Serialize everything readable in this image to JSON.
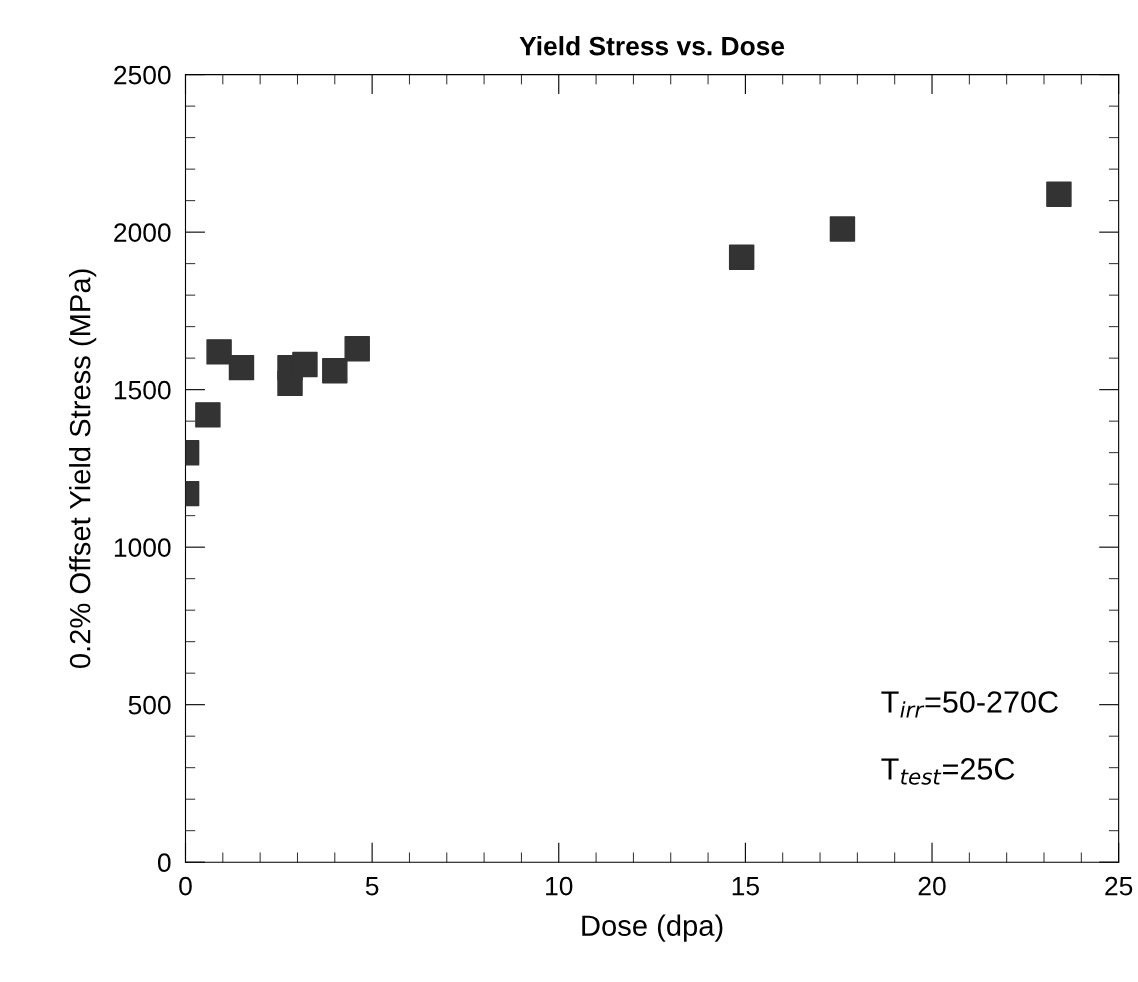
{
  "chart_data": {
    "type": "scatter",
    "title": "Yield Stress vs. Dose",
    "xlabel": "Dose (dpa)",
    "ylabel": "0.2% Offset Yield Stress (MPa)",
    "x": [
      0.03,
      0.03,
      0.6,
      0.9,
      1.5,
      2.8,
      2.8,
      3.2,
      4.0,
      4.6,
      14.9,
      17.6,
      23.4
    ],
    "series": [
      {
        "color": "#333333",
        "values": [
          1300,
          1170,
          1420,
          1620,
          1570,
          1520,
          1570,
          1580,
          1560,
          1630,
          1920,
          2010,
          2120
        ]
      }
    ],
    "marker": "square",
    "xlim": [
      0,
      25
    ],
    "ylim": [
      0,
      2500
    ],
    "xticks": [
      0,
      5,
      10,
      15,
      20,
      25
    ],
    "yticks": [
      0,
      500,
      1000,
      1500,
      2000,
      2500
    ],
    "annotations": [
      "T$_{irr}$=50-270C",
      "T$_{test}$=25C"
    ],
    "grid": false,
    "legend": false
  }
}
